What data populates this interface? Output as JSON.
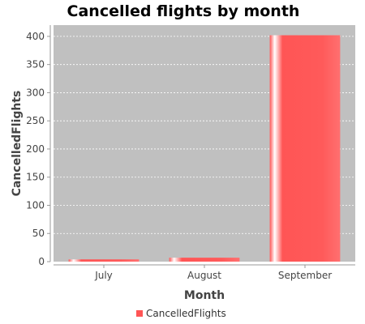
{
  "chart_data": {
    "type": "bar",
    "title": "Cancelled flights by month",
    "xlabel": "Month",
    "ylabel": "CancelledFlights",
    "categories": [
      "July",
      "August",
      "September"
    ],
    "series": [
      {
        "name": "CancelledFlights",
        "values": [
          4,
          7,
          402
        ]
      }
    ],
    "ylim": [
      0,
      420
    ],
    "yticks": [
      0,
      50,
      100,
      150,
      200,
      250,
      300,
      350,
      400
    ],
    "grid": true,
    "legend_position": "bottom-center",
    "colors": {
      "bar": "#ff5555",
      "plot_background": "#c0c0c0",
      "gridline": "#ffffff"
    }
  }
}
